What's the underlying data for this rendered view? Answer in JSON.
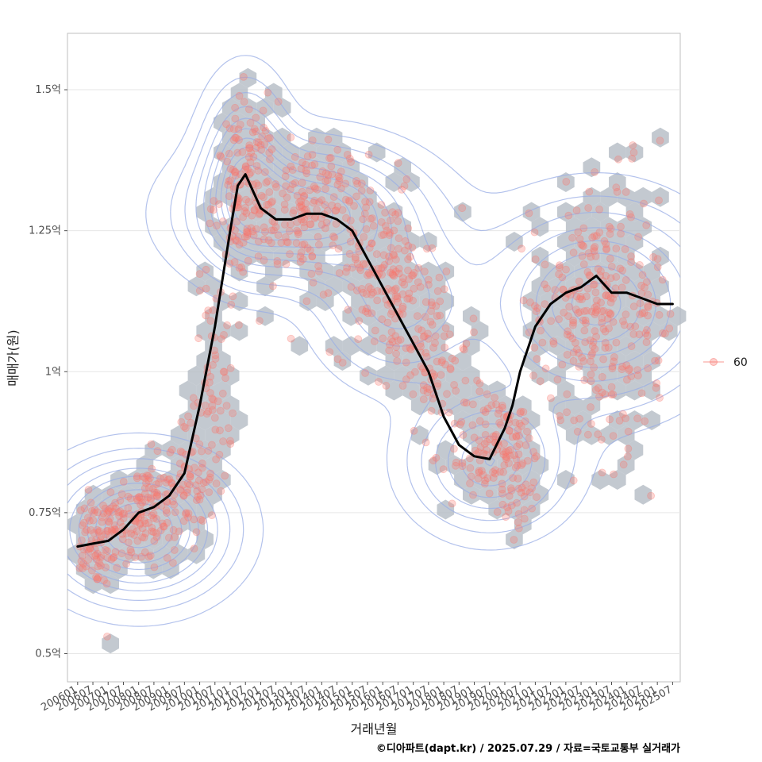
{
  "chart_data": {
    "type": "scatter",
    "xlabel": "거래년월",
    "ylabel": "매매가(원)",
    "caption": "©디아파트(dapt.kr) / 2025.07.29 / 자료=국토교통부 실거래가",
    "y_unit": "억",
    "ylim": [
      0.45,
      1.6
    ],
    "y_ticks": [
      {
        "value": 0.5,
        "label": "0.5억"
      },
      {
        "value": 0.75,
        "label": "0.75억"
      },
      {
        "value": 1.0,
        "label": "1억"
      },
      {
        "value": 1.25,
        "label": "1.25억"
      },
      {
        "value": 1.5,
        "label": "1.5억"
      }
    ],
    "x_range": [
      "2005-09",
      "2025-10"
    ],
    "x_ticks": [
      "200601",
      "200607",
      "200701",
      "200707",
      "200801",
      "200807",
      "200901",
      "200907",
      "201001",
      "201007",
      "201101",
      "201107",
      "201201",
      "201207",
      "201301",
      "201307",
      "201401",
      "201407",
      "201501",
      "201507",
      "201601",
      "201607",
      "201701",
      "201707",
      "201801",
      "201807",
      "201901",
      "201907",
      "202001",
      "202007",
      "202101",
      "202107",
      "202201",
      "202207",
      "202301",
      "202307",
      "202401",
      "202407",
      "202501",
      "202507"
    ],
    "legend": {
      "position": "right",
      "entries": [
        {
          "name": "60",
          "color": "#F8766D"
        }
      ]
    },
    "grid": true,
    "colors": {
      "points": "#F8766D",
      "trend": "#000000",
      "hex": "#B4BCC4",
      "contour": "#9AAEE6"
    },
    "layers": [
      "hexbin density",
      "2d density contours",
      "scatter points",
      "moving-average trend line"
    ],
    "trend": {
      "x": [
        "2006-01",
        "2006-07",
        "2007-01",
        "2007-07",
        "2008-01",
        "2008-07",
        "2009-01",
        "2009-07",
        "2010-01",
        "2010-07",
        "2011-01",
        "2011-04",
        "2011-07",
        "2011-10",
        "2012-01",
        "2012-07",
        "2013-01",
        "2013-07",
        "2014-01",
        "2014-07",
        "2015-01",
        "2015-07",
        "2016-01",
        "2016-07",
        "2017-01",
        "2017-07",
        "2018-01",
        "2018-07",
        "2019-01",
        "2019-07",
        "2020-01",
        "2020-04",
        "2020-07",
        "2021-01",
        "2021-07",
        "2022-01",
        "2022-07",
        "2022-10",
        "2023-01",
        "2023-07",
        "2024-01",
        "2024-07",
        "2025-01",
        "2025-07"
      ],
      "y": [
        0.69,
        0.695,
        0.7,
        0.72,
        0.75,
        0.76,
        0.78,
        0.82,
        0.94,
        1.08,
        1.25,
        1.33,
        1.35,
        1.32,
        1.29,
        1.27,
        1.27,
        1.28,
        1.28,
        1.27,
        1.25,
        1.2,
        1.15,
        1.1,
        1.05,
        1.0,
        0.92,
        0.87,
        0.85,
        0.845,
        0.9,
        0.94,
        1.0,
        1.08,
        1.12,
        1.14,
        1.15,
        1.16,
        1.17,
        1.14,
        1.14,
        1.13,
        1.12,
        1.12
      ]
    },
    "scatter_clusters": [
      {
        "center": [
          "2006-07",
          0.7
        ],
        "spread": [
          6,
          0.04
        ],
        "count": 90
      },
      {
        "center": [
          "2008-01",
          0.74
        ],
        "spread": [
          8,
          0.05
        ],
        "count": 130
      },
      {
        "center": [
          "2009-07",
          0.8
        ],
        "spread": [
          6,
          0.06
        ],
        "count": 90
      },
      {
        "center": [
          "2010-07",
          1.0
        ],
        "spread": [
          4,
          0.1
        ],
        "count": 60
      },
      {
        "center": [
          "2011-07",
          1.32
        ],
        "spread": [
          6,
          0.08
        ],
        "count": 130
      },
      {
        "center": [
          "2013-07",
          1.29
        ],
        "spread": [
          12,
          0.06
        ],
        "count": 200
      },
      {
        "center": [
          "2016-01",
          1.17
        ],
        "spread": [
          10,
          0.07
        ],
        "count": 150
      },
      {
        "center": [
          "2017-07",
          1.05
        ],
        "spread": [
          8,
          0.07
        ],
        "count": 100
      },
      {
        "center": [
          "2019-07",
          0.86
        ],
        "spread": [
          8,
          0.06
        ],
        "count": 110
      },
      {
        "center": [
          "2020-07",
          0.83
        ],
        "spread": [
          4,
          0.06
        ],
        "count": 50
      },
      {
        "center": [
          "2022-07",
          1.12
        ],
        "spread": [
          10,
          0.1
        ],
        "count": 160
      },
      {
        "center": [
          "2024-01",
          1.1
        ],
        "spread": [
          12,
          0.12
        ],
        "count": 150
      }
    ],
    "density_peaks": [
      {
        "center": [
          "2008-01",
          0.72
        ],
        "spread": [
          20,
          0.07
        ],
        "weight": 1.0
      },
      {
        "center": [
          "2013-07",
          1.28
        ],
        "spread": [
          26,
          0.07
        ],
        "weight": 0.95
      },
      {
        "center": [
          "2011-07",
          1.36
        ],
        "spread": [
          10,
          0.09
        ],
        "weight": 0.6
      },
      {
        "center": [
          "2019-07",
          0.84
        ],
        "spread": [
          18,
          0.07
        ],
        "weight": 0.6
      },
      {
        "center": [
          "2023-01",
          1.12
        ],
        "spread": [
          26,
          0.1
        ],
        "weight": 0.75
      },
      {
        "center": [
          "2016-07",
          1.12
        ],
        "spread": [
          18,
          0.08
        ],
        "weight": 0.45
      }
    ]
  }
}
